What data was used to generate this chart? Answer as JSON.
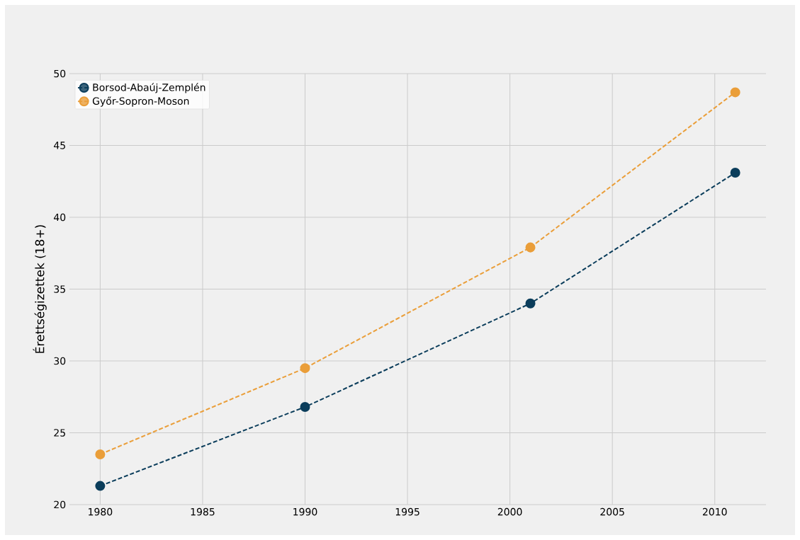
{
  "chart_data": {
    "type": "line",
    "ylabel": "Érettségizettek (18+)",
    "x": [
      1980,
      1990,
      2001,
      2011
    ],
    "series": [
      {
        "name": "Borsod-Abaúj-Zemplén",
        "color": "#0b3d5b",
        "values": [
          21.3,
          26.8,
          34.0,
          43.1
        ]
      },
      {
        "name": "Győr-Sopron-Moson",
        "color": "#ea9e39",
        "values": [
          23.5,
          29.5,
          37.9,
          48.7
        ]
      }
    ],
    "xlim": [
      1978.5,
      2012.5
    ],
    "ylim": [
      20,
      50
    ],
    "xticks": [
      1980,
      1985,
      1990,
      1995,
      2000,
      2005,
      2010
    ],
    "yticks": [
      20,
      25,
      30,
      35,
      40,
      45,
      50
    ],
    "grid": true,
    "legend": "top left",
    "marker": "circle",
    "line_style": "dashed"
  }
}
